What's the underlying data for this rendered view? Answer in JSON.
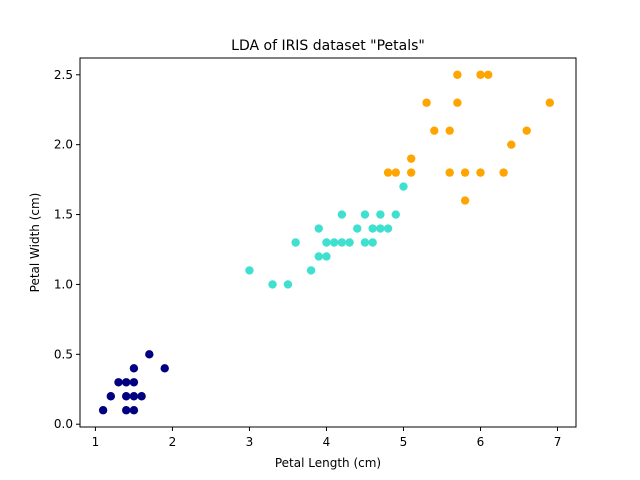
{
  "chart_data": {
    "type": "scatter",
    "title": "LDA of IRIS dataset \"Petals\"",
    "xlabel": "Petal Length (cm)",
    "ylabel": "Petal Width (cm)",
    "xlim": [
      0.8,
      7.24
    ],
    "ylim": [
      -0.02,
      2.62
    ],
    "xticks": [
      1,
      2,
      3,
      4,
      5,
      6,
      7
    ],
    "xtick_labels": [
      "1",
      "2",
      "3",
      "4",
      "5",
      "6",
      "7"
    ],
    "yticks": [
      0.0,
      0.5,
      1.0,
      1.5,
      2.0,
      2.5
    ],
    "ytick_labels": [
      "0.0",
      "0.5",
      "1.0",
      "1.5",
      "2.0",
      "2.5"
    ],
    "grid": false,
    "series": [
      {
        "color": "#000080",
        "points": [
          [
            1.1,
            0.1
          ],
          [
            1.2,
            0.2
          ],
          [
            1.3,
            0.3
          ],
          [
            1.4,
            0.1
          ],
          [
            1.4,
            0.2
          ],
          [
            1.4,
            0.3
          ],
          [
            1.5,
            0.1
          ],
          [
            1.5,
            0.2
          ],
          [
            1.5,
            0.3
          ],
          [
            1.5,
            0.4
          ],
          [
            1.6,
            0.2
          ],
          [
            1.7,
            0.5
          ],
          [
            1.9,
            0.4
          ]
        ]
      },
      {
        "color": "#40e0d0",
        "points": [
          [
            3.0,
            1.1
          ],
          [
            3.3,
            1.0
          ],
          [
            3.5,
            1.0
          ],
          [
            3.6,
            1.3
          ],
          [
            3.8,
            1.1
          ],
          [
            3.9,
            1.2
          ],
          [
            3.9,
            1.4
          ],
          [
            4.0,
            1.2
          ],
          [
            4.0,
            1.3
          ],
          [
            4.1,
            1.3
          ],
          [
            4.2,
            1.3
          ],
          [
            4.2,
            1.5
          ],
          [
            4.3,
            1.3
          ],
          [
            4.4,
            1.4
          ],
          [
            4.5,
            1.3
          ],
          [
            4.5,
            1.5
          ],
          [
            4.6,
            1.3
          ],
          [
            4.6,
            1.4
          ],
          [
            4.7,
            1.4
          ],
          [
            4.7,
            1.5
          ],
          [
            4.8,
            1.4
          ],
          [
            4.9,
            1.5
          ],
          [
            5.0,
            1.7
          ]
        ]
      },
      {
        "color": "#ffa500",
        "points": [
          [
            4.8,
            1.8
          ],
          [
            4.9,
            1.8
          ],
          [
            5.1,
            1.8
          ],
          [
            5.1,
            1.9
          ],
          [
            5.3,
            2.3
          ],
          [
            5.4,
            2.1
          ],
          [
            5.6,
            1.8
          ],
          [
            5.6,
            2.1
          ],
          [
            5.7,
            2.3
          ],
          [
            5.7,
            2.5
          ],
          [
            5.8,
            1.6
          ],
          [
            5.8,
            1.8
          ],
          [
            6.0,
            1.8
          ],
          [
            6.0,
            2.5
          ],
          [
            6.1,
            2.5
          ],
          [
            6.3,
            1.8
          ],
          [
            6.4,
            2.0
          ],
          [
            6.6,
            2.1
          ],
          [
            6.9,
            2.3
          ]
        ]
      }
    ]
  }
}
